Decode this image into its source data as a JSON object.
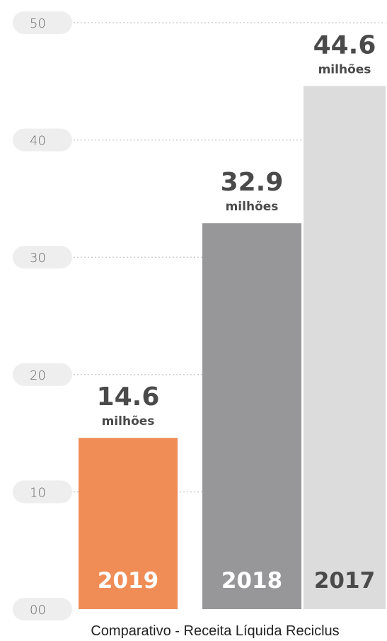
{
  "chart_data": {
    "type": "bar",
    "caption": "Comparativo - Receita Líquida Reciclus",
    "categories": [
      "2019",
      "2018",
      "2017"
    ],
    "values": [
      14.6,
      32.9,
      44.6
    ],
    "value_labels": [
      "14.6",
      "32.9",
      "44.6"
    ],
    "unit_label": "milhões",
    "ylim": [
      0,
      50
    ],
    "yticks": [
      "00",
      "10",
      "20",
      "30",
      "40",
      "50"
    ],
    "grid": true,
    "colors": {
      "bars": [
        "#f08c56",
        "#97979a",
        "#dcdcdd"
      ],
      "year_text": [
        "#ffffff",
        "#ffffff",
        "#4a4a4a"
      ],
      "tick_pill": "#eeeeee",
      "text": "#4a4a4a"
    }
  }
}
